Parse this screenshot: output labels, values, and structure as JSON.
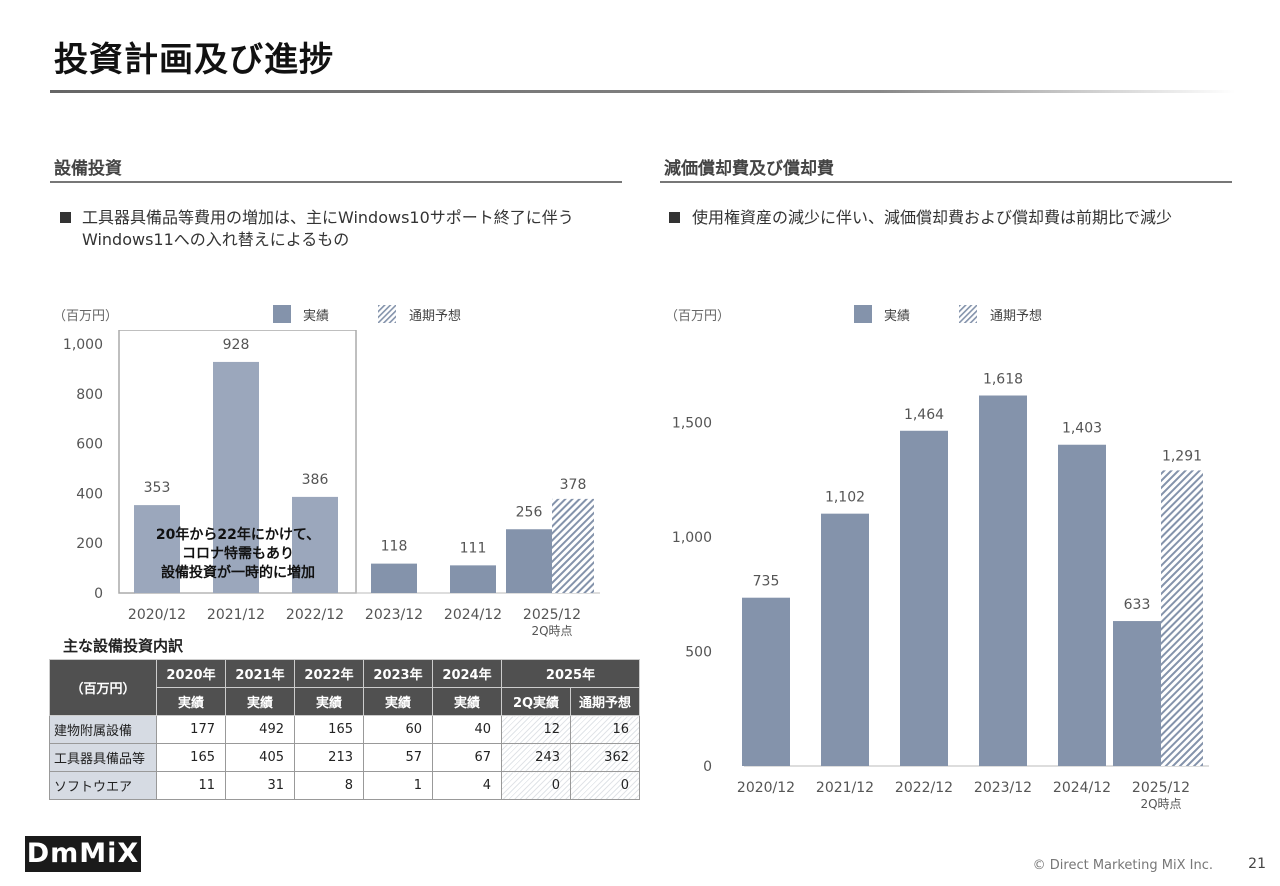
{
  "page": {
    "title": "投資計画及び進捗",
    "footer": "© Direct Marketing MiX Inc.",
    "page_number": "21",
    "logo_text": "DmMiX"
  },
  "left": {
    "section_title": "設備投資",
    "bullet_line1": "工具器具備品等費用の増加は、主にWindows10サポート終了に伴う",
    "bullet_line2": "Windows11への入れ替えによるもの",
    "unit": "（百万円）",
    "legend_actual": "実績",
    "legend_forecast": "通期予想",
    "annotation": [
      "20年から22年にかけて、",
      "コロナ特需もあり",
      "設備投資が一時的に増加"
    ],
    "table_title": "主な設備投資内訳",
    "table": {
      "corner": "（百万円）",
      "years": [
        "2020年",
        "2021年",
        "2022年",
        "2023年",
        "2024年",
        "2025年"
      ],
      "subheaders": [
        "実績",
        "実績",
        "実績",
        "実績",
        "実績",
        "2Q実績",
        "通期予想"
      ],
      "rows": [
        {
          "label": "建物附属設備",
          "values": [
            "177",
            "492",
            "165",
            "60",
            "40",
            "12",
            "16"
          ]
        },
        {
          "label": "工具器具備品等",
          "values": [
            "165",
            "405",
            "213",
            "57",
            "67",
            "243",
            "362"
          ]
        },
        {
          "label": "ソフトウエア",
          "values": [
            "11",
            "31",
            "8",
            "1",
            "4",
            "0",
            "0"
          ]
        }
      ]
    }
  },
  "right": {
    "section_title": "減価償却費及び償却費",
    "bullet_line1": "使用権資産の減少に伴い、減価償却費および償却費は前期比で減少",
    "unit": "（百万円）",
    "legend_actual": "実績",
    "legend_forecast": "通期予想"
  },
  "colors": {
    "actual_bar": "#8493ab",
    "highlight_bar": "#9ba7bc",
    "hatch": "#8493ab"
  },
  "chart_data": [
    {
      "type": "bar",
      "title": "設備投資",
      "categories": [
        "2020/12",
        "2021/12",
        "2022/12",
        "2023/12",
        "2024/12",
        "2025/12"
      ],
      "category_sublabels": [
        "",
        "",
        "",
        "",
        "",
        "2Q時点"
      ],
      "series": [
        {
          "name": "実績",
          "values": [
            353,
            928,
            386,
            118,
            111,
            256
          ]
        },
        {
          "name": "通期予想",
          "values": [
            null,
            null,
            null,
            null,
            null,
            378
          ]
        }
      ],
      "yticks": [
        0,
        200,
        400,
        600,
        800,
        1000
      ],
      "ytick_labels": [
        "0",
        "200",
        "400",
        "600",
        "800",
        "1,000"
      ],
      "ylim": [
        0,
        1000
      ],
      "value_labels": [
        "353",
        "928",
        "386",
        "118",
        "111",
        "256"
      ],
      "forecast_label": "378"
    },
    {
      "type": "bar",
      "title": "減価償却費及び償却費",
      "categories": [
        "2020/12",
        "2021/12",
        "2022/12",
        "2023/12",
        "2024/12",
        "2025/12"
      ],
      "category_sublabels": [
        "",
        "",
        "",
        "",
        "",
        "2Q時点"
      ],
      "series": [
        {
          "name": "実績",
          "values": [
            735,
            1102,
            1464,
            1618,
            1403,
            633
          ]
        },
        {
          "name": "通期予想",
          "values": [
            null,
            null,
            null,
            null,
            null,
            1291
          ]
        }
      ],
      "yticks": [
        0,
        500,
        1000,
        1500
      ],
      "ytick_labels": [
        "0",
        "500",
        "1,000",
        "1,500"
      ],
      "ylim": [
        0,
        1690
      ],
      "value_labels": [
        "735",
        "1,102",
        "1,464",
        "1,618",
        "1,403",
        "633"
      ],
      "forecast_label": "1,291"
    }
  ]
}
